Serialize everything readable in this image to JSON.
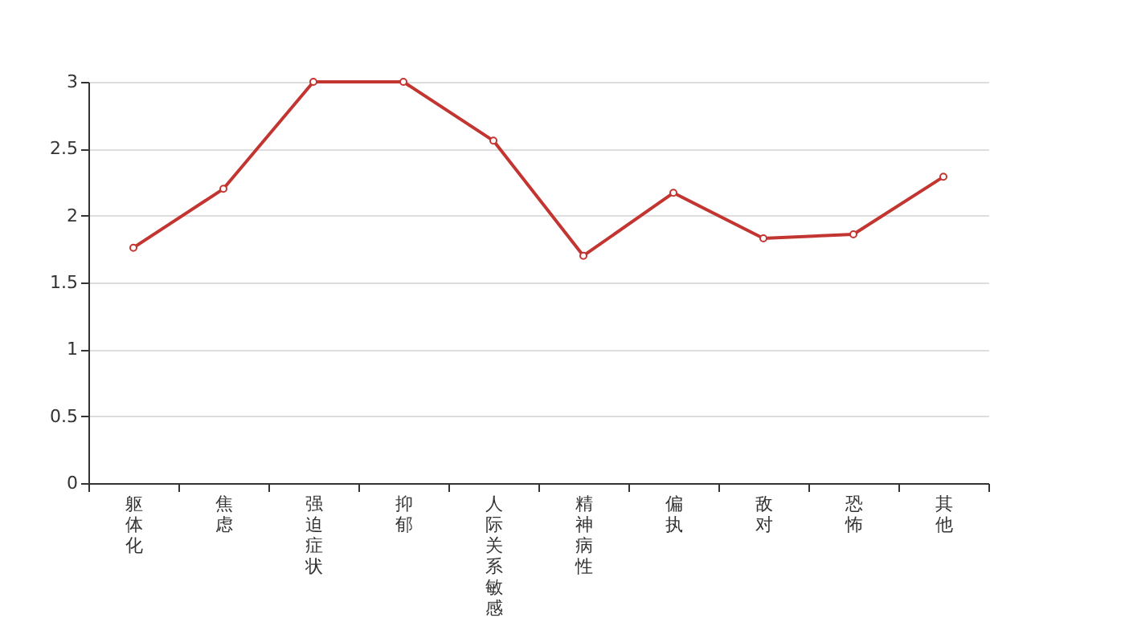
{
  "chart_data": {
    "type": "line",
    "categories": [
      "躯体化",
      "焦虑",
      "强迫症状",
      "抑郁",
      "人际关系敏感",
      "精神病性",
      "偏执",
      "敌对",
      "恐怖",
      "其他"
    ],
    "series": [
      {
        "color": "#c23531",
        "values": [
          1.76,
          2.2,
          3,
          3,
          2.56,
          1.7,
          2.17,
          1.83,
          1.86,
          2.29
        ]
      }
    ],
    "ylim": [
      0,
      3
    ],
    "yticks": [
      0,
      0.5,
      1,
      1.5,
      2,
      2.5,
      3
    ],
    "grid": "y",
    "marker": "circle",
    "line_style": "solid"
  }
}
